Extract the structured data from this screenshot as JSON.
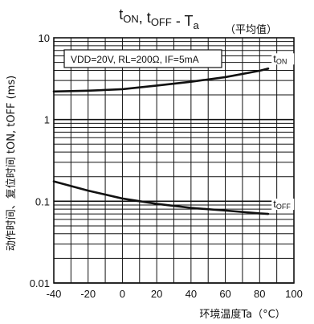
{
  "chart_data": {
    "type": "line",
    "title": {
      "main_parts": [
        {
          "text": "t",
          "sub": "ON"
        },
        {
          "text": ", t",
          "sub": "OFF"
        },
        {
          "text": " - T",
          "sub": "a"
        }
      ],
      "suffix": "（平均值）"
    },
    "xlabel": "环境温度Ta（°C）",
    "ylabel": "动作时间、复位时间 tON, tOFF (ms)",
    "xlim": [
      -40,
      100
    ],
    "ylim": [
      0.01,
      10
    ],
    "yscale": "log",
    "xticks": [
      -40,
      -20,
      0,
      20,
      40,
      60,
      80,
      100
    ],
    "xtick_labels": [
      "-40",
      "-20",
      "0",
      "20",
      "40",
      "60",
      "80",
      "100"
    ],
    "yticks": [
      0.01,
      0.1,
      1,
      10
    ],
    "ytick_labels": [
      "0.01",
      "0.1",
      "1",
      "10"
    ],
    "grid": true,
    "annotation": "VDD=20V, RL=200Ω, IF=5mA",
    "series": [
      {
        "name": "tON",
        "x": [
          -40,
          -20,
          0,
          20,
          40,
          60,
          80,
          85
        ],
        "y": [
          2.2,
          2.25,
          2.35,
          2.6,
          2.9,
          3.3,
          3.95,
          4.2
        ]
      },
      {
        "name": "tOFF",
        "x": [
          -40,
          -20,
          0,
          20,
          40,
          60,
          80,
          85
        ],
        "y": [
          0.175,
          0.135,
          0.108,
          0.093,
          0.083,
          0.077,
          0.071,
          0.07
        ]
      }
    ]
  }
}
